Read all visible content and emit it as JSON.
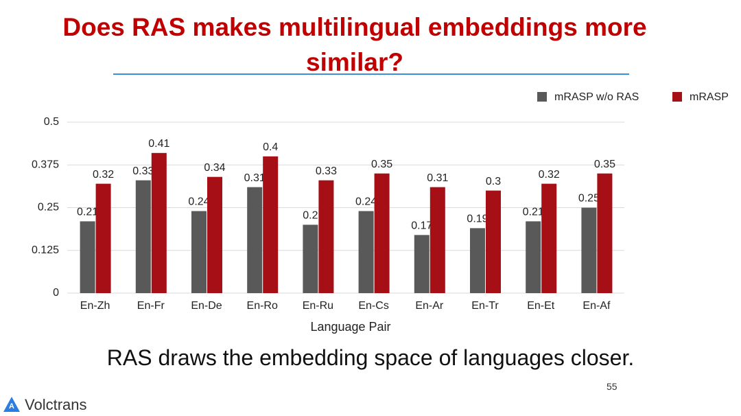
{
  "chart_data": {
    "type": "bar",
    "title": "Does RAS makes multilingual embeddings more similar?",
    "x_label": "Language Pair",
    "categories": [
      "En-Zh",
      "En-Fr",
      "En-De",
      "En-Ro",
      "En-Ru",
      "En-Cs",
      "En-Ar",
      "En-Tr",
      "En-Et",
      "En-Af"
    ],
    "series": [
      {
        "name": "mRASP w/o RAS",
        "color": "#595959",
        "values": [
          0.21,
          0.33,
          0.24,
          0.31,
          0.2,
          0.24,
          0.17,
          0.19,
          0.21,
          0.25
        ]
      },
      {
        "name": "mRASP",
        "color": "#a50f15",
        "values": [
          0.32,
          0.41,
          0.34,
          0.4,
          0.33,
          0.35,
          0.31,
          0.3,
          0.32,
          0.35
        ]
      }
    ],
    "ylim": [
      0,
      0.5
    ],
    "yticks": [
      0,
      0.125,
      0.25,
      0.375,
      0.5
    ],
    "grid": true,
    "legend": "top-right",
    "data_labels": true
  },
  "slide": {
    "caption": "RAS draws the embedding space of languages closer.",
    "page_number": "55",
    "logo": "Volctrans"
  }
}
